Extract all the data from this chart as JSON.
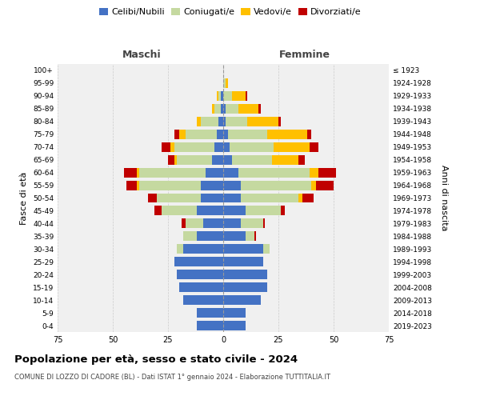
{
  "age_groups": [
    "0-4",
    "5-9",
    "10-14",
    "15-19",
    "20-24",
    "25-29",
    "30-34",
    "35-39",
    "40-44",
    "45-49",
    "50-54",
    "55-59",
    "60-64",
    "65-69",
    "70-74",
    "75-79",
    "80-84",
    "85-89",
    "90-94",
    "95-99",
    "100+"
  ],
  "birth_years": [
    "2019-2023",
    "2014-2018",
    "2009-2013",
    "2004-2008",
    "1999-2003",
    "1994-1998",
    "1989-1993",
    "1984-1988",
    "1979-1983",
    "1974-1978",
    "1969-1973",
    "1964-1968",
    "1959-1963",
    "1954-1958",
    "1949-1953",
    "1944-1948",
    "1939-1943",
    "1934-1938",
    "1929-1933",
    "1924-1928",
    "≤ 1923"
  ],
  "colors": {
    "celibi": "#4472c4",
    "coniugati": "#c5d9a0",
    "vedovi": "#ffc000",
    "divorziati": "#c00000"
  },
  "maschi": {
    "celibi": [
      12,
      12,
      18,
      20,
      21,
      22,
      18,
      12,
      9,
      12,
      10,
      10,
      8,
      5,
      4,
      3,
      2,
      1,
      1,
      0,
      0
    ],
    "coniugati": [
      0,
      0,
      0,
      0,
      0,
      0,
      3,
      6,
      8,
      16,
      20,
      28,
      30,
      16,
      18,
      14,
      8,
      3,
      1,
      0,
      0
    ],
    "vedovi": [
      0,
      0,
      0,
      0,
      0,
      0,
      0,
      0,
      0,
      0,
      0,
      1,
      1,
      1,
      2,
      3,
      2,
      1,
      1,
      0,
      0
    ],
    "divorziati": [
      0,
      0,
      0,
      0,
      0,
      0,
      0,
      0,
      2,
      3,
      4,
      5,
      6,
      3,
      4,
      2,
      0,
      0,
      0,
      0,
      0
    ]
  },
  "femmine": {
    "celibi": [
      10,
      10,
      17,
      20,
      20,
      18,
      18,
      10,
      8,
      10,
      8,
      8,
      7,
      4,
      3,
      2,
      1,
      1,
      0,
      0,
      0
    ],
    "coniugati": [
      0,
      0,
      0,
      0,
      0,
      0,
      3,
      4,
      10,
      16,
      26,
      32,
      32,
      18,
      20,
      18,
      10,
      6,
      4,
      1,
      0
    ],
    "vedovi": [
      0,
      0,
      0,
      0,
      0,
      0,
      0,
      0,
      0,
      0,
      2,
      2,
      4,
      12,
      16,
      18,
      14,
      9,
      6,
      1,
      0
    ],
    "divorziati": [
      0,
      0,
      0,
      0,
      0,
      0,
      0,
      1,
      1,
      2,
      5,
      8,
      8,
      3,
      4,
      2,
      1,
      1,
      1,
      0,
      0
    ]
  },
  "title": "Popolazione per età, sesso e stato civile - 2024",
  "subtitle": "COMUNE DI LOZZO DI CADORE (BL) - Dati ISTAT 1° gennaio 2024 - Elaborazione TUTTITALIA.IT",
  "xlabel_left": "Maschi",
  "xlabel_right": "Femmine",
  "ylabel_left": "Fasce di età",
  "ylabel_right": "Anni di nascita",
  "xlim": 75,
  "bg_color": "#f0f0f0",
  "grid_color": "#cccccc"
}
